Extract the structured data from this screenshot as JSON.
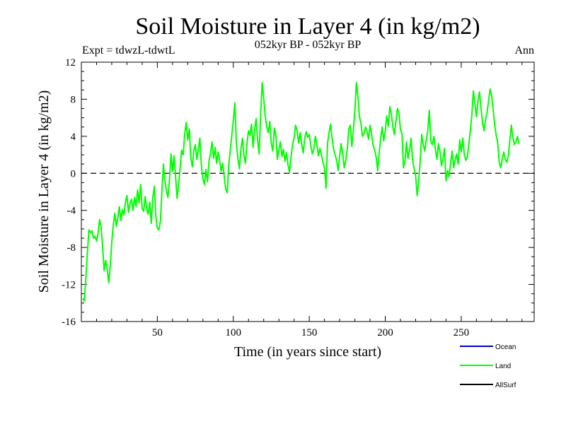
{
  "chart_data": {
    "type": "line",
    "title": "Soil Moisture in Layer 4 (in kg/m2)",
    "subtitle": "052kyr BP - 052kyr BP",
    "expt_label": "Expt = tdwzL-tdwtL",
    "period_label": "Ann",
    "xlabel": "Time (in years since start)",
    "ylabel": "Soil Moisture in Layer 4 (in kg/m2)",
    "xlim": [
      0,
      298
    ],
    "ylim": [
      -16,
      12
    ],
    "x_ticks": [
      50,
      100,
      150,
      200,
      250
    ],
    "y_ticks": [
      12,
      8,
      4,
      0,
      -4,
      -8,
      -12,
      -16
    ],
    "zero_line": true,
    "grid": false,
    "legend_position": "bottom-right",
    "legend": [
      {
        "name": "Ocean",
        "color": "#0000cc"
      },
      {
        "name": "Land",
        "color": "#00ff00"
      },
      {
        "name": "AllSurf",
        "color": "#000000"
      }
    ],
    "series": [
      {
        "name": "Land",
        "color": "#00ff00",
        "x_start": 1,
        "x_step": 1,
        "values": [
          -13.5,
          -13.8,
          -11.2,
          -8.5,
          -6.1,
          -6.4,
          -6.2,
          -7.0,
          -6.8,
          -7.3,
          -6.5,
          -5.0,
          -5.8,
          -8.0,
          -10.5,
          -9.4,
          -10.3,
          -11.8,
          -10.0,
          -7.4,
          -5.6,
          -4.3,
          -5.7,
          -4.8,
          -3.6,
          -5.1,
          -3.9,
          -4.5,
          -3.1,
          -2.4,
          -4.2,
          -3.3,
          -2.8,
          -4.0,
          -2.6,
          -3.6,
          -1.8,
          -3.2,
          -1.2,
          -3.8,
          -4.1,
          -2.5,
          -3.8,
          -4.4,
          -3.1,
          -5.4,
          -2.7,
          -1.4,
          -4.6,
          -5.9,
          -6.1,
          -5.2,
          -2.0,
          1.0,
          -0.8,
          -1.9,
          -2.6,
          -0.6,
          2.1,
          0.2,
          1.9,
          -0.4,
          -2.7,
          -1.2,
          0.6,
          2.5,
          2.0,
          4.2,
          5.5,
          3.6,
          4.8,
          1.8,
          0.7,
          2.4,
          3.1,
          1.5,
          2.6,
          3.8,
          0.8,
          -0.6,
          -1.2,
          0.4,
          -0.9,
          1.3,
          2.2,
          3.4,
          1.6,
          2.8,
          1.1,
          2.3,
          1.4,
          0.2,
          1.1,
          -0.3,
          -1.7,
          -2.1,
          0.9,
          2.5,
          4.1,
          5.7,
          7.6,
          3.2,
          1.6,
          0.5,
          2.6,
          3.8,
          1.9,
          1.1,
          3.2,
          4.6,
          4.1,
          5.3,
          2.8,
          4.7,
          5.9,
          3.6,
          2.1,
          6.4,
          9.8,
          8.1,
          6.2,
          5.0,
          4.4,
          5.6,
          3.2,
          2.4,
          4.9,
          4.1,
          1.5,
          2.6,
          3.4,
          1.8,
          2.6,
          1.3,
          2.2,
          0.9,
          0.1,
          1.8,
          3.1,
          3.8,
          5.2,
          4.6,
          3.3,
          4.4,
          3.1,
          2.2,
          3.8,
          4.5,
          3.9,
          4.2,
          3.0,
          2.1,
          2.6,
          4.0,
          3.1,
          1.9,
          2.7,
          2.0,
          1.2,
          0.6,
          -1.6,
          3.2,
          4.4,
          5.3,
          3.8,
          2.6,
          2.0,
          1.4,
          0.3,
          1.9,
          3.2,
          2.1,
          0.6,
          1.4,
          2.6,
          4.8,
          5.2,
          2.9,
          4.6,
          6.8,
          9.8,
          8.3,
          6.1,
          5.4,
          4.0,
          4.3,
          5.0,
          4.5,
          3.7,
          5.2,
          4.2,
          3.1,
          2.5,
          1.8,
          0.3,
          2.2,
          3.8,
          5.0,
          3.5,
          4.6,
          6.2,
          5.1,
          7.2,
          6.4,
          5.0,
          4.2,
          5.6,
          7.0,
          6.5,
          4.7,
          4.3,
          0.6,
          1.3,
          3.4,
          1.6,
          2.5,
          3.8,
          1.4,
          0.5,
          -0.3,
          -2.4,
          -0.8,
          1.3,
          4.2,
          3.1,
          2.4,
          3.6,
          4.6,
          6.8,
          3.4,
          3.1,
          4.0,
          2.6,
          1.5,
          3.2,
          2.4,
          0.8,
          1.6,
          2.7,
          -0.8,
          0.3,
          -0.4,
          1.1,
          2.4,
          0.6,
          1.5,
          2.1,
          1.0,
          3.6,
          2.3,
          3.8,
          2.1,
          1.4,
          1.8,
          3.2,
          4.6,
          6.3,
          8.9,
          7.6,
          6.1,
          7.8,
          8.8,
          7.1,
          5.5,
          4.6,
          5.8,
          6.6,
          7.8,
          9.1,
          8.4,
          6.9,
          5.2,
          4.1,
          3.3,
          1.2,
          0.6,
          1.6,
          2.3,
          1.5,
          1.2,
          1.9,
          3.6,
          5.2,
          3.9,
          3.1,
          3.4,
          4.0,
          3.2
        ]
      }
    ]
  }
}
